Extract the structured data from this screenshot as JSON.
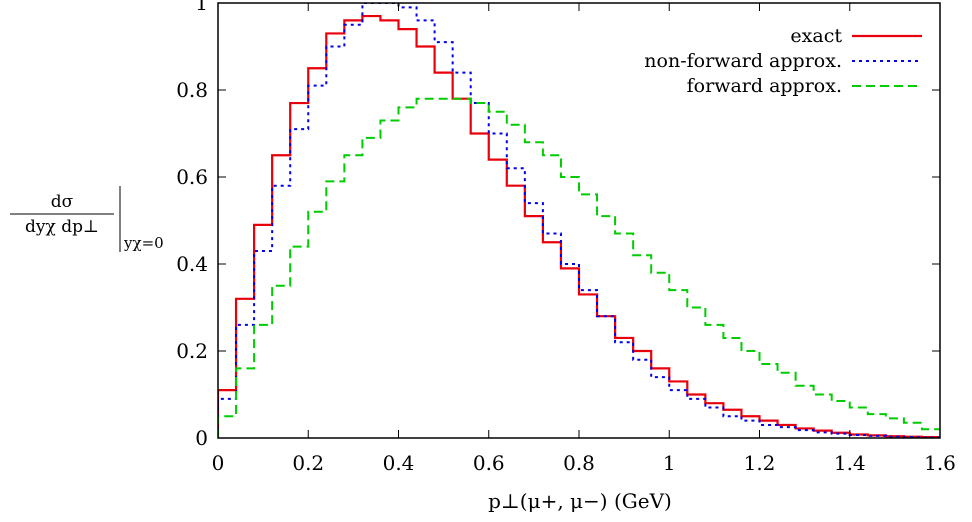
{
  "chart_data": {
    "type": "line",
    "step": true,
    "xlabel": "p⊥(μ+, μ−)  (GeV)",
    "ylabel": {
      "numerator": "dσ",
      "denominator": "dyχ dp⊥",
      "condition": "yχ=0"
    },
    "xlim": [
      0,
      1.6
    ],
    "ylim": [
      0,
      1.0
    ],
    "xticks": [
      0,
      0.2,
      0.4,
      0.6,
      0.8,
      1,
      1.2,
      1.4,
      1.6
    ],
    "xtick_labels": [
      "0",
      "0.2",
      "0.4",
      "0.6",
      "0.8",
      "1",
      "1.2",
      "1.4",
      "1.6"
    ],
    "yticks": [
      0,
      0.2,
      0.4,
      0.6,
      0.8,
      1
    ],
    "ytick_labels": [
      "0",
      "0.2",
      "0.4",
      "0.6",
      "0.8",
      "1"
    ],
    "grid": false,
    "legend_position": "top-right",
    "bin_edges": [
      0,
      0.04,
      0.08,
      0.12,
      0.16,
      0.2,
      0.24,
      0.28,
      0.32,
      0.36,
      0.4,
      0.44,
      0.48,
      0.52,
      0.56,
      0.6,
      0.64,
      0.68,
      0.72,
      0.76,
      0.8,
      0.84,
      0.88,
      0.92,
      0.96,
      1.0,
      1.04,
      1.08,
      1.12,
      1.16,
      1.2,
      1.24,
      1.28,
      1.32,
      1.36,
      1.4,
      1.44,
      1.48,
      1.52,
      1.56,
      1.6
    ],
    "series": [
      {
        "name": "exact",
        "color": "#e8000b",
        "dash": "solid",
        "values": [
          0.11,
          0.32,
          0.49,
          0.65,
          0.77,
          0.85,
          0.93,
          0.96,
          0.97,
          0.96,
          0.94,
          0.9,
          0.84,
          0.78,
          0.7,
          0.64,
          0.58,
          0.51,
          0.45,
          0.39,
          0.33,
          0.28,
          0.23,
          0.2,
          0.16,
          0.13,
          0.1,
          0.08,
          0.065,
          0.05,
          0.04,
          0.03,
          0.022,
          0.017,
          0.012,
          0.008,
          0.006,
          0.004,
          0.003,
          0.002
        ]
      },
      {
        "name": "non-forward approx.",
        "color": "#0000ee",
        "dash": "dotted",
        "values": [
          0.09,
          0.26,
          0.43,
          0.58,
          0.71,
          0.81,
          0.9,
          0.95,
          1.0,
          1.0,
          0.99,
          0.96,
          0.91,
          0.84,
          0.77,
          0.7,
          0.62,
          0.54,
          0.47,
          0.4,
          0.34,
          0.28,
          0.22,
          0.18,
          0.14,
          0.11,
          0.09,
          0.07,
          0.05,
          0.04,
          0.03,
          0.025,
          0.018,
          0.013,
          0.01,
          0.007,
          0.005,
          0.003,
          0.002,
          0.001
        ]
      },
      {
        "name": "forward approx.",
        "color": "#00cc00",
        "dash": "dashed",
        "values": [
          0.05,
          0.16,
          0.26,
          0.35,
          0.44,
          0.52,
          0.59,
          0.65,
          0.69,
          0.73,
          0.76,
          0.78,
          0.78,
          0.78,
          0.77,
          0.75,
          0.72,
          0.68,
          0.65,
          0.6,
          0.56,
          0.51,
          0.47,
          0.42,
          0.38,
          0.34,
          0.3,
          0.26,
          0.23,
          0.2,
          0.17,
          0.15,
          0.12,
          0.1,
          0.085,
          0.07,
          0.055,
          0.045,
          0.035,
          0.02
        ]
      }
    ]
  }
}
